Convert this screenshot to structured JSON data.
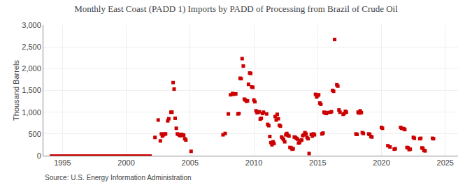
{
  "chart_data": {
    "type": "scatter",
    "title": "Monthly East Coast (PADD 1) Imports by PADD of Processing from Brazil of Crude Oil",
    "ylabel": "Thousand Barrels",
    "annotations": [
      "Source: U.S. Energy Information Administration"
    ],
    "xlim": [
      1993.5,
      2026.0
    ],
    "xticks": [
      1995,
      2000,
      2005,
      2010,
      2015,
      2020,
      2025
    ],
    "ylim": [
      0,
      3000
    ],
    "yticks": [
      0,
      500,
      {
        "value": 1000,
        "label": "1,000"
      },
      {
        "value": 1500,
        "label": "1,500"
      },
      {
        "value": 2000,
        "label": "2,000"
      },
      {
        "value": 2500,
        "label": "2,500"
      },
      {
        "value": 3000,
        "label": "3,000"
      }
    ],
    "grid": true,
    "series": [
      {
        "type": "line",
        "color": "#cc0000",
        "x": [
          1994.0,
          2002.0
        ],
        "values": [
          0,
          0
        ]
      },
      {
        "type": "scatter",
        "marker": "square",
        "color": "#cc0000",
        "x": [
          2002.25,
          2002.5,
          2002.67,
          2002.75,
          2002.83,
          2002.92,
          2003.0,
          2003.08,
          2003.25,
          2003.33,
          2003.5,
          2003.58,
          2003.67,
          2003.75,
          2003.83,
          2003.92,
          2004.0,
          2004.08,
          2004.17,
          2004.25,
          2004.33,
          2004.42,
          2004.5,
          2004.58,
          2004.67,
          2005.08,
          2007.58,
          2007.75,
          2008.0,
          2008.17,
          2008.33,
          2008.42,
          2008.5,
          2008.58,
          2008.75,
          2008.83,
          2008.92,
          2009.0,
          2009.08,
          2009.17,
          2009.25,
          2009.33,
          2009.42,
          2009.5,
          2009.58,
          2009.67,
          2009.75,
          2009.83,
          2009.92,
          2010.0,
          2010.08,
          2010.17,
          2010.25,
          2010.33,
          2010.42,
          2010.5,
          2010.58,
          2010.67,
          2010.75,
          2011.0,
          2011.08,
          2011.17,
          2011.25,
          2011.33,
          2011.42,
          2011.5,
          2011.58,
          2011.67,
          2011.75,
          2011.83,
          2011.92,
          2012.0,
          2012.08,
          2012.17,
          2012.25,
          2012.33,
          2012.42,
          2012.5,
          2012.58,
          2012.67,
          2012.75,
          2012.83,
          2012.92,
          2013.0,
          2013.08,
          2013.17,
          2013.25,
          2013.33,
          2013.42,
          2013.5,
          2013.58,
          2013.67,
          2013.75,
          2013.83,
          2013.92,
          2014.0,
          2014.08,
          2014.17,
          2014.25,
          2014.33,
          2014.5,
          2014.58,
          2014.67,
          2014.75,
          2014.83,
          2014.92,
          2015.0,
          2015.08,
          2015.17,
          2015.25,
          2015.33,
          2015.42,
          2015.5,
          2015.58,
          2015.67,
          2015.75,
          2016.0,
          2016.08,
          2016.17,
          2016.25,
          2016.33,
          2016.5,
          2016.58,
          2016.67,
          2016.75,
          2017.0,
          2017.08,
          2017.17,
          2017.25,
          2018.0,
          2018.08,
          2018.17,
          2018.25,
          2018.33,
          2018.42,
          2018.5,
          2018.58,
          2019.0,
          2019.08,
          2019.17,
          2019.25,
          2020.0,
          2020.08,
          2020.5,
          2020.67,
          2021.0,
          2021.08,
          2021.5,
          2021.58,
          2021.75,
          2021.83,
          2022.0,
          2022.08,
          2022.17,
          2022.25,
          2022.5,
          2022.58,
          2023.0,
          2023.08,
          2023.17,
          2023.25,
          2023.33,
          2023.42,
          2024.0,
          2024.08
        ],
        "values": [
          420,
          820,
          340,
          500,
          450,
          480,
          500,
          500,
          800,
          850,
          1000,
          1000,
          1680,
          1530,
          860,
          630,
          500,
          490,
          470,
          460,
          490,
          480,
          470,
          390,
          360,
          100,
          480,
          510,
          960,
          1400,
          1430,
          1410,
          1420,
          1420,
          960,
          970,
          1780,
          1770,
          2230,
          2060,
          1300,
          1280,
          1250,
          1260,
          1640,
          1900,
          1890,
          1580,
          1570,
          1280,
          1240,
          1030,
          990,
          1000,
          1010,
          840,
          860,
          970,
          1000,
          960,
          720,
          690,
          440,
          300,
          250,
          320,
          280,
          900,
          820,
          950,
          850,
          700,
          680,
          430,
          400,
          370,
          320,
          480,
          510,
          470,
          450,
          190,
          180,
          150,
          160,
          430,
          420,
          400,
          380,
          290,
          300,
          350,
          360,
          460,
          480,
          530,
          500,
          420,
          390,
          50,
          490,
          450,
          500,
          480,
          1410,
          1350,
          1380,
          1400,
          1210,
          1180,
          500,
          520,
          1000,
          980,
          970,
          990,
          1000,
          1010,
          1500,
          1480,
          2670,
          1630,
          1600,
          1050,
          1000,
          950,
          970,
          1020,
          1000,
          500,
          490,
          1000,
          980,
          1030,
          990,
          530,
          510,
          500,
          490,
          440,
          430,
          650,
          630,
          230,
          200,
          150,
          160,
          650,
          630,
          620,
          600,
          190,
          180,
          140,
          150,
          420,
          400,
          390,
          400,
          180,
          170,
          120,
          110,
          400,
          390
        ]
      }
    ]
  }
}
